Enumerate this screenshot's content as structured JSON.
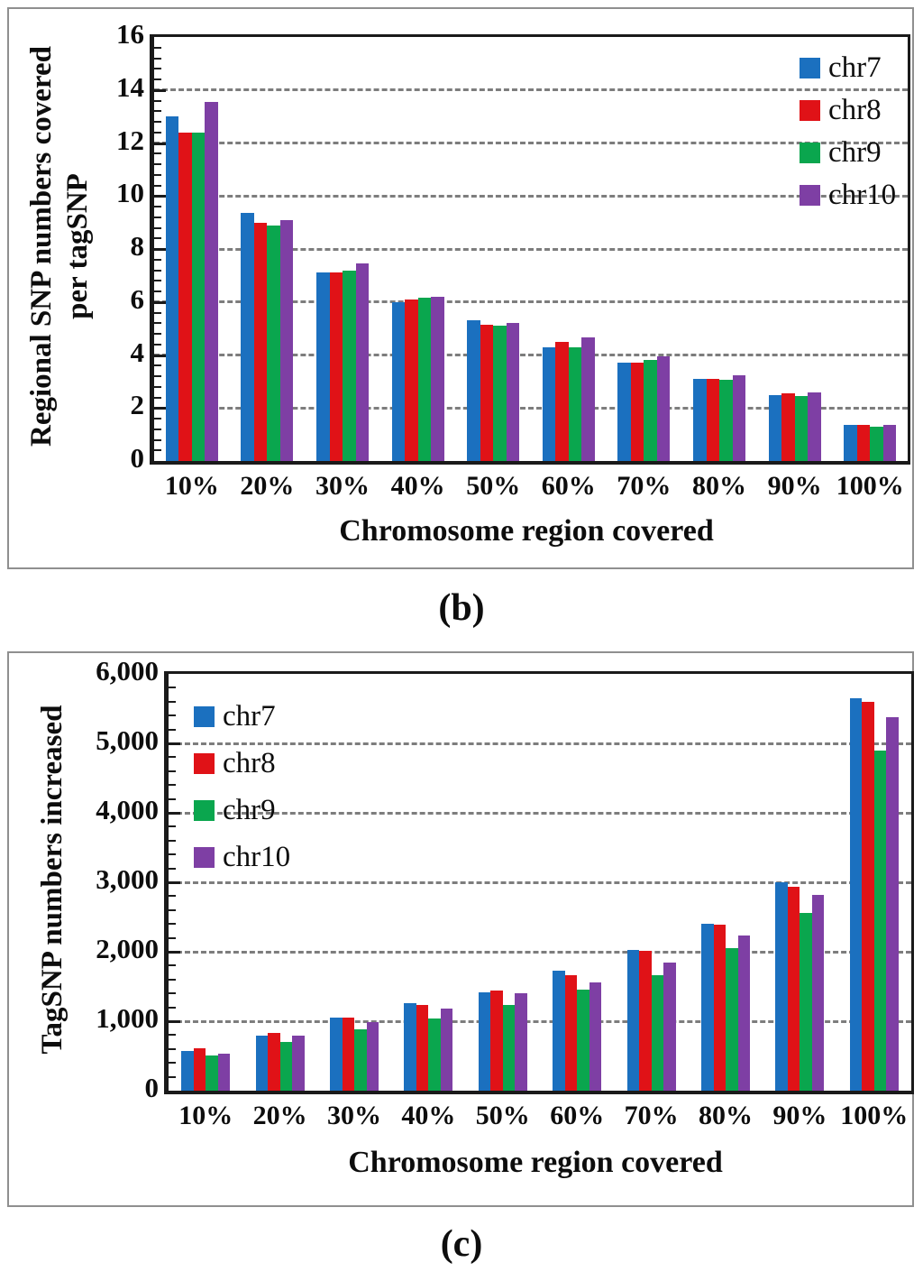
{
  "figure": {
    "caption_b": "(b)",
    "caption_c": "(c)"
  },
  "colors": {
    "chr7": "#1b70bf",
    "chr8": "#e01217",
    "chr9": "#0aa64e",
    "chr10": "#7e3fa4",
    "gridline": "#7d7d7d",
    "axis": "#1a1a1a",
    "panel_border": "#8f8f8f"
  },
  "chart_data": [
    {
      "type": "bar",
      "panel": "b",
      "title": "",
      "xlabel": "Chromosome region covered",
      "ylabel": "Regional SNP numbers covered per tagSNP",
      "ylabel_lines": [
        "Regional  SNP numbers covered",
        "per tagSNP"
      ],
      "categories": [
        "10%",
        "20%",
        "30%",
        "40%",
        "50%",
        "60%",
        "70%",
        "80%",
        "90%",
        "100%"
      ],
      "series": [
        {
          "name": "chr7",
          "color": "#1b70bf",
          "values": [
            13.0,
            9.35,
            7.1,
            6.0,
            5.3,
            4.3,
            3.7,
            3.1,
            2.5,
            1.35
          ]
        },
        {
          "name": "chr8",
          "color": "#e01217",
          "values": [
            12.4,
            9.0,
            7.1,
            6.1,
            5.15,
            4.5,
            3.7,
            3.1,
            2.55,
            1.37
          ]
        },
        {
          "name": "chr9",
          "color": "#0aa64e",
          "values": [
            12.4,
            8.9,
            7.2,
            6.15,
            5.1,
            4.3,
            3.8,
            3.05,
            2.45,
            1.3
          ]
        },
        {
          "name": "chr10",
          "color": "#7e3fa4",
          "values": [
            13.55,
            9.1,
            7.45,
            6.2,
            5.2,
            4.65,
            3.95,
            3.25,
            2.6,
            1.37
          ]
        }
      ],
      "ylim": [
        0,
        16
      ],
      "yticks": [
        {
          "v": 0,
          "label": "0"
        },
        {
          "v": 2,
          "label": "2"
        },
        {
          "v": 4,
          "label": "4"
        },
        {
          "v": 6,
          "label": "6"
        },
        {
          "v": 8,
          "label": "8"
        },
        {
          "v": 10,
          "label": "10"
        },
        {
          "v": 12,
          "label": "12"
        },
        {
          "v": 14,
          "label": "14"
        },
        {
          "v": 16,
          "label": "16"
        }
      ],
      "major_step": 2,
      "minor_step": 0.4,
      "grid": "dashed-horizontal",
      "legend_position": "top-right"
    },
    {
      "type": "bar",
      "panel": "c",
      "title": "",
      "xlabel": "Chromosome region covered",
      "ylabel": "TagSNP numbers increased",
      "ylabel_lines": [
        "TagSNP numbers increased"
      ],
      "categories": [
        "10%",
        "20%",
        "30%",
        "40%",
        "50%",
        "60%",
        "70%",
        "80%",
        "90%",
        "100%"
      ],
      "series": [
        {
          "name": "chr7",
          "color": "#1b70bf",
          "values": [
            570,
            790,
            1050,
            1260,
            1420,
            1730,
            2030,
            2400,
            3000,
            5650
          ]
        },
        {
          "name": "chr8",
          "color": "#e01217",
          "values": [
            610,
            830,
            1050,
            1230,
            1440,
            1660,
            2010,
            2390,
            2940,
            5600
          ]
        },
        {
          "name": "chr9",
          "color": "#0aa64e",
          "values": [
            510,
            700,
            880,
            1040,
            1240,
            1460,
            1660,
            2050,
            2560,
            4890
          ]
        },
        {
          "name": "chr10",
          "color": "#7e3fa4",
          "values": [
            530,
            790,
            990,
            1180,
            1400,
            1560,
            1840,
            2230,
            2820,
            5380
          ]
        }
      ],
      "ylim": [
        0,
        6000
      ],
      "yticks": [
        {
          "v": 0,
          "label": "0"
        },
        {
          "v": 1000,
          "label": "1,000"
        },
        {
          "v": 2000,
          "label": "2,000"
        },
        {
          "v": 3000,
          "label": "3,000"
        },
        {
          "v": 4000,
          "label": "4,000"
        },
        {
          "v": 5000,
          "label": "5,000"
        },
        {
          "v": 6000,
          "label": "6,000"
        }
      ],
      "major_step": 1000,
      "minor_step": 200,
      "grid": "dashed-horizontal",
      "legend_position": "top-left"
    }
  ]
}
